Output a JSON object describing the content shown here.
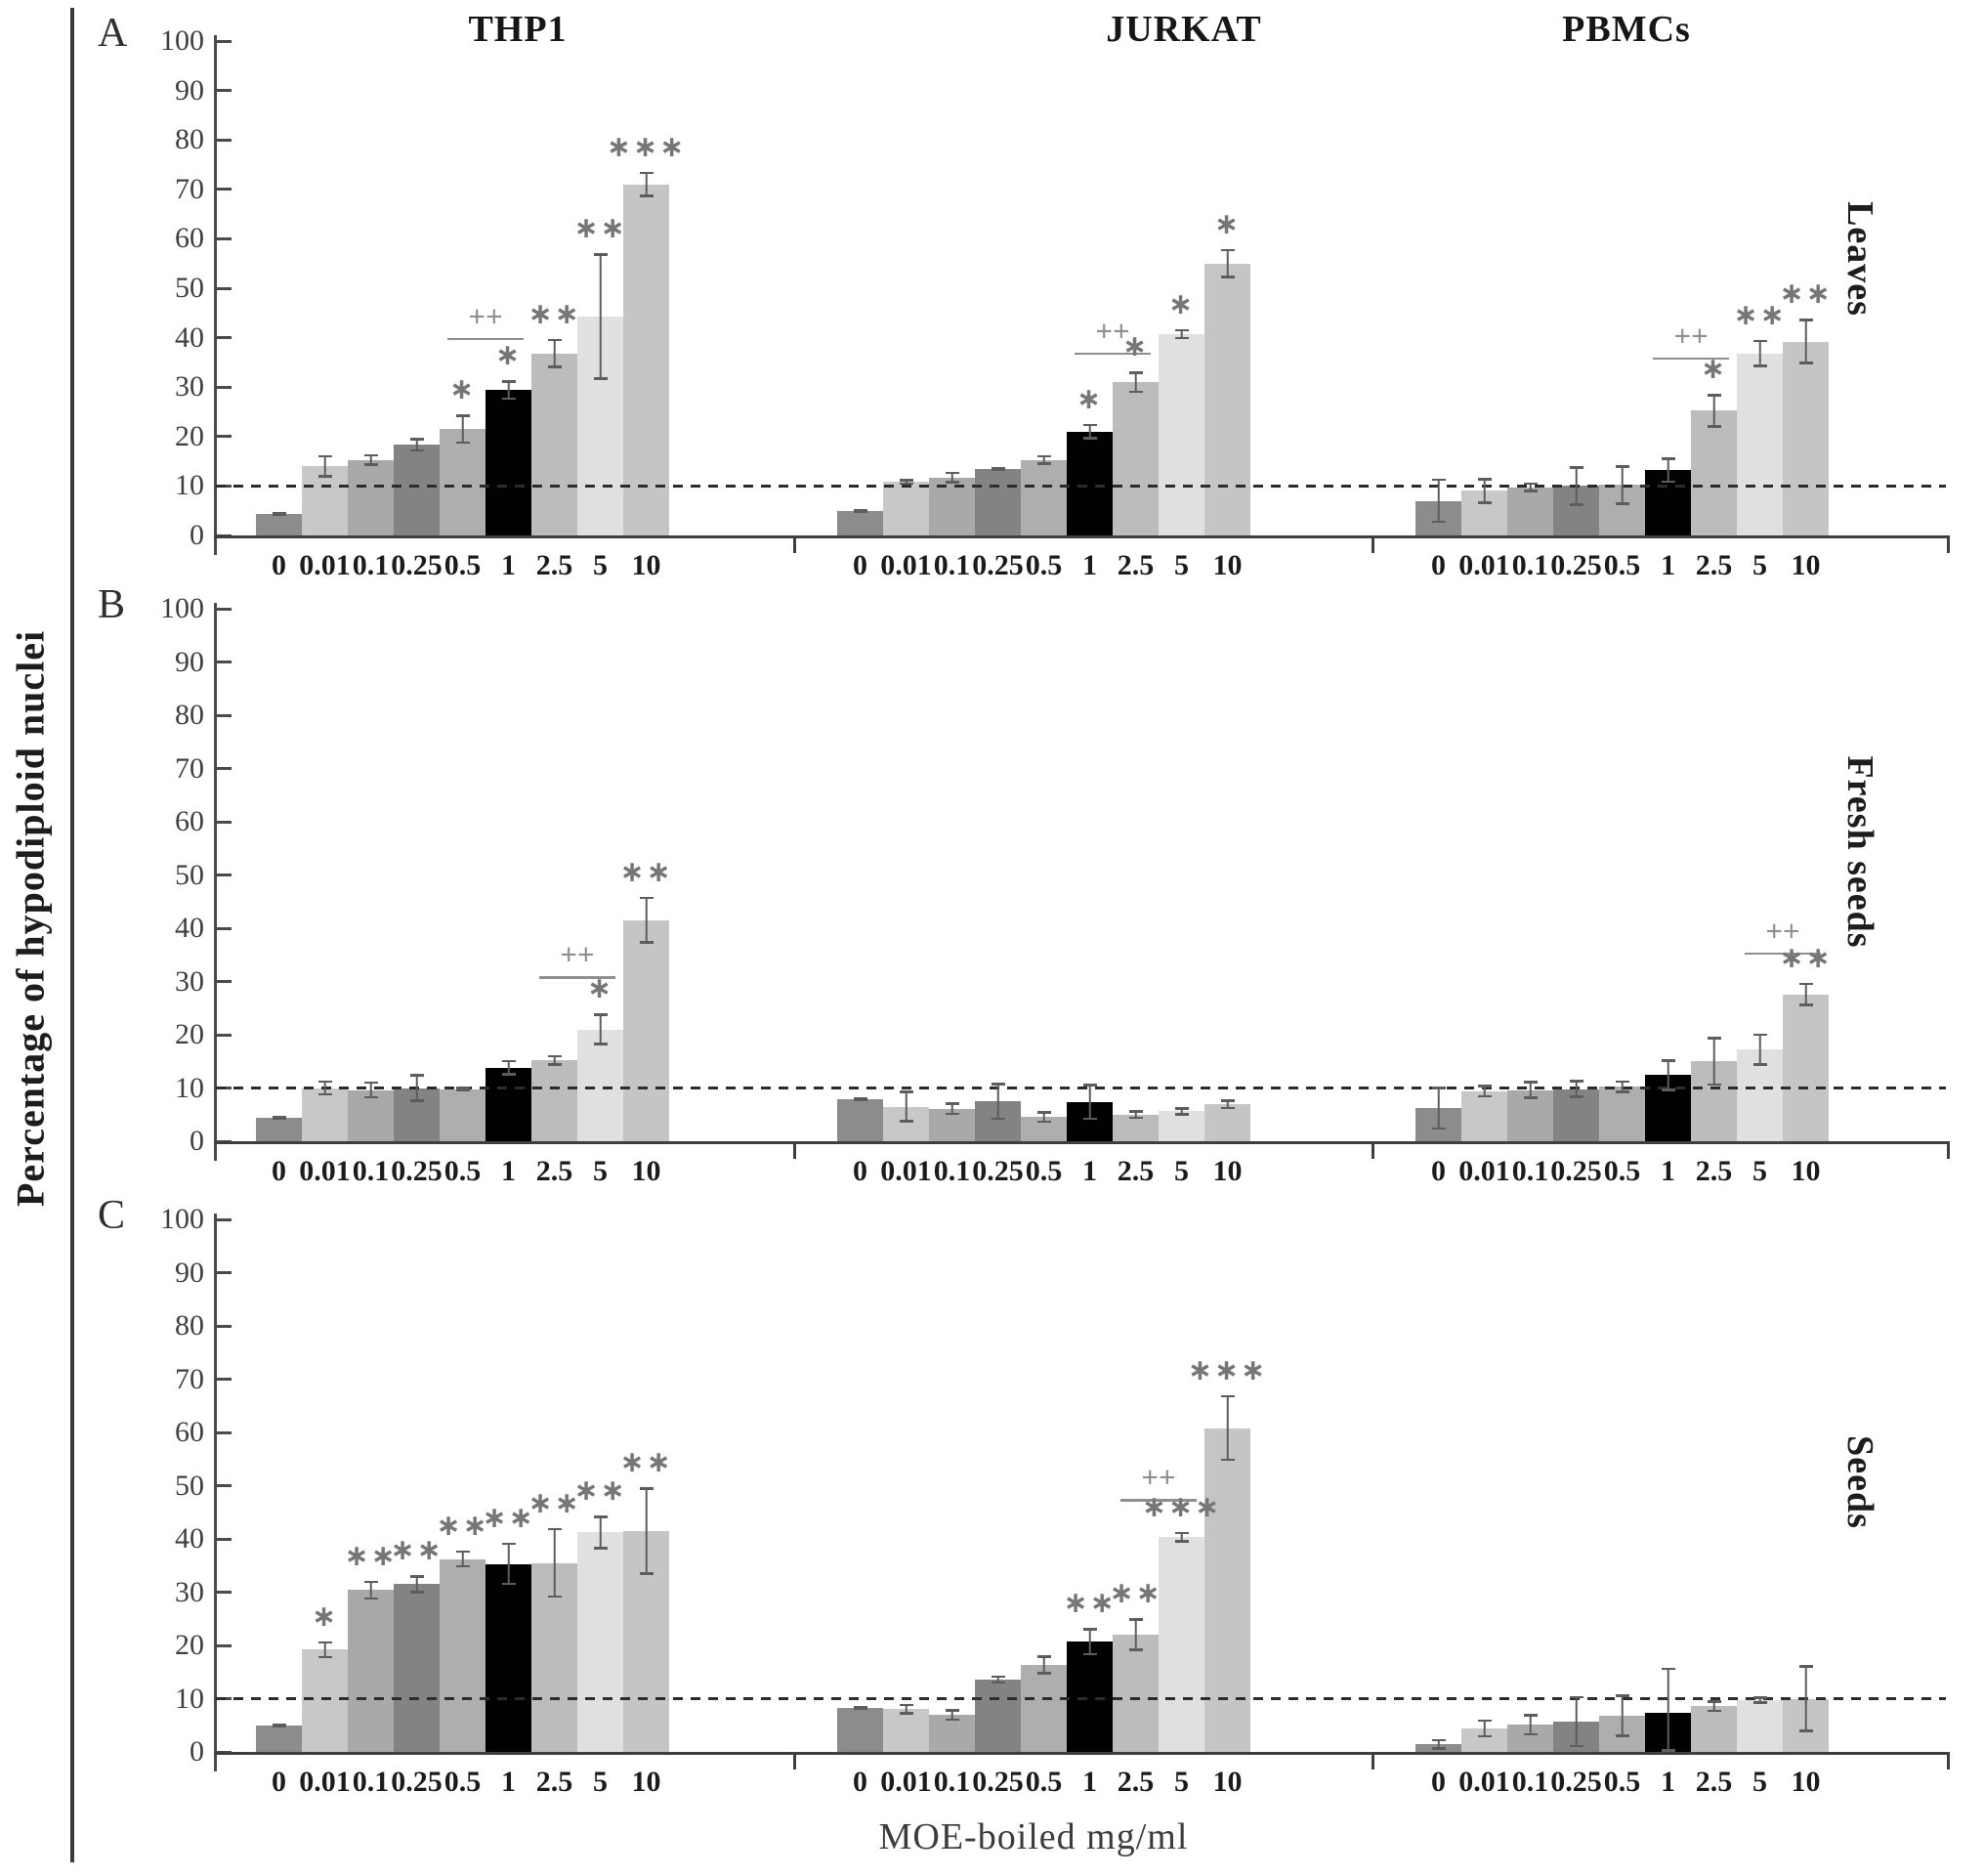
{
  "figure": {
    "y_axis_label": "Percentage of hypodiploid nuclei",
    "x_axis_label": "MOE-boiled mg/ml",
    "column_headers": [
      "THP1",
      "JURKAT",
      "PBMCs"
    ],
    "row_labels": [
      "Leaves",
      "Fresh seeds",
      "Seeds"
    ],
    "panel_tags": [
      "A",
      "B",
      "C"
    ],
    "y_ticks": [
      0,
      10,
      20,
      30,
      40,
      50,
      60,
      70,
      80,
      90,
      100
    ],
    "threshold_value": 10,
    "bar_colors": [
      "#8c8c8c",
      "#c8c8c8",
      "#a9a9a9",
      "#838383",
      "#aeaeae",
      "#010101",
      "#bcbcbc",
      "#e0e0e0",
      "#c5c5c5"
    ],
    "significance_symbol": "∗",
    "bracket_symbol": "++"
  },
  "chart_data": {
    "type": "bar",
    "categories": [
      "0",
      "0.01",
      "0.1",
      "0.25",
      "0.5",
      "1",
      "2.5",
      "5",
      "10"
    ],
    "xlabel": "MOE-boiled mg/ml",
    "ylabel": "Percentage of hypodiploid nuclei",
    "ylim": [
      0,
      100
    ],
    "grid": false,
    "dashed_reference_line_y": 10,
    "panels": [
      {
        "row": "A",
        "tissue": "Leaves",
        "cell_line": "THP1",
        "values": [
          4.3,
          14,
          15.3,
          18.3,
          21.5,
          29.4,
          36.8,
          44.3,
          71
        ],
        "errors": [
          0.4,
          2.3,
          1.2,
          1.4,
          3,
          2,
          3,
          12.8,
          2.6
        ],
        "sig": [
          "",
          "",
          "",
          "",
          "*",
          "*",
          "**",
          "**",
          "***"
        ],
        "bracket": {
          "from": 4,
          "to": 5,
          "y": 40,
          "label": "++"
        }
      },
      {
        "row": "A",
        "tissue": "Leaves",
        "cell_line": "JURKAT",
        "values": [
          5,
          10.8,
          11.7,
          13.5,
          15.3,
          21,
          31,
          40.7,
          55
        ],
        "errors": [
          0.4,
          0.6,
          1.2,
          0.4,
          1,
          1.6,
          2.2,
          1,
          3
        ],
        "sig": [
          "",
          "",
          "",
          "",
          "",
          "*",
          "*",
          "*",
          "*"
        ],
        "bracket": {
          "from": 5,
          "to": 6,
          "y": 37,
          "label": "++"
        }
      },
      {
        "row": "A",
        "tissue": "Leaves",
        "cell_line": "PBMCs",
        "values": [
          7,
          9,
          9.7,
          10,
          10.2,
          13.2,
          25.2,
          36.8,
          39.2
        ],
        "errors": [
          4.5,
          2.6,
          1,
          4,
          4,
          2.6,
          3.4,
          2.8,
          4.6
        ],
        "sig": [
          "",
          "",
          "",
          "",
          "",
          "",
          "*",
          "**",
          "**"
        ],
        "bracket": {
          "from": 5,
          "to": 6,
          "y": 36,
          "label": "++"
        }
      },
      {
        "row": "B",
        "tissue": "Fresh seeds",
        "cell_line": "THP1",
        "values": [
          4.4,
          10,
          9.6,
          10,
          9.8,
          13.8,
          15.2,
          21,
          41.5
        ],
        "errors": [
          0.3,
          1.4,
          1.6,
          2.6,
          0.4,
          1.5,
          1,
          3,
          4.4
        ],
        "sig": [
          "",
          "",
          "",
          "",
          "",
          "",
          "",
          "*",
          "**"
        ],
        "bracket": {
          "from": 6,
          "to": 7,
          "y": 31,
          "label": "++"
        }
      },
      {
        "row": "B",
        "tissue": "Fresh seeds",
        "cell_line": "JURKAT",
        "values": [
          7.9,
          6.5,
          6.1,
          7.5,
          4.5,
          7.4,
          5,
          5.6,
          6.9
        ],
        "errors": [
          0.4,
          3,
          1.2,
          3.5,
          1.1,
          3.4,
          0.8,
          0.8,
          0.9
        ],
        "sig": [
          "",
          "",
          "",
          "",
          "",
          "",
          "",
          "",
          ""
        ],
        "bracket": null
      },
      {
        "row": "B",
        "tissue": "Fresh seeds",
        "cell_line": "PBMCs",
        "values": [
          6.2,
          9.4,
          9.6,
          9.8,
          10.2,
          12.4,
          15,
          17.2,
          27.6
        ],
        "errors": [
          4,
          1.2,
          1.7,
          1.7,
          1.2,
          3,
          4.6,
          3,
          2.2
        ],
        "sig": [
          "",
          "",
          "",
          "",
          "",
          "",
          "",
          "",
          "**"
        ],
        "bracket": {
          "from": 7,
          "to": 8,
          "y": 35.5,
          "label": "++"
        }
      },
      {
        "row": "C",
        "tissue": "Seeds",
        "cell_line": "THP1",
        "values": [
          5,
          19.2,
          30.4,
          31.5,
          36.2,
          35.3,
          35.5,
          41.2,
          41.5
        ],
        "errors": [
          0.4,
          1.6,
          1.8,
          1.7,
          1.6,
          4,
          6.6,
          3.2,
          8.2
        ],
        "sig": [
          "",
          "*",
          "**",
          "**",
          "**",
          "**",
          "**",
          "**",
          "**"
        ],
        "bracket": null
      },
      {
        "row": "C",
        "tissue": "Seeds",
        "cell_line": "JURKAT",
        "values": [
          8.2,
          8,
          6.9,
          13.6,
          16.3,
          20.7,
          22,
          40.3,
          60.8
        ],
        "errors": [
          0.4,
          1,
          1.1,
          0.8,
          1.8,
          2.6,
          3.1,
          1,
          6.2
        ],
        "sig": [
          "",
          "",
          "",
          "",
          "",
          "**",
          "**",
          "***",
          "***"
        ],
        "bracket": {
          "from": 6,
          "to": 7,
          "y": 47.5,
          "label": "++"
        }
      },
      {
        "row": "C",
        "tissue": "Seeds",
        "cell_line": "PBMCs",
        "values": [
          1.4,
          4.4,
          5.1,
          5.7,
          6.8,
          7.3,
          8.6,
          9.7,
          10
        ],
        "errors": [
          1,
          1.7,
          2,
          4.8,
          4,
          8.5,
          1.1,
          0.7,
          6.3
        ],
        "sig": [
          "",
          "",
          "",
          "",
          "",
          "",
          "",
          "",
          ""
        ],
        "bracket": null
      }
    ]
  }
}
